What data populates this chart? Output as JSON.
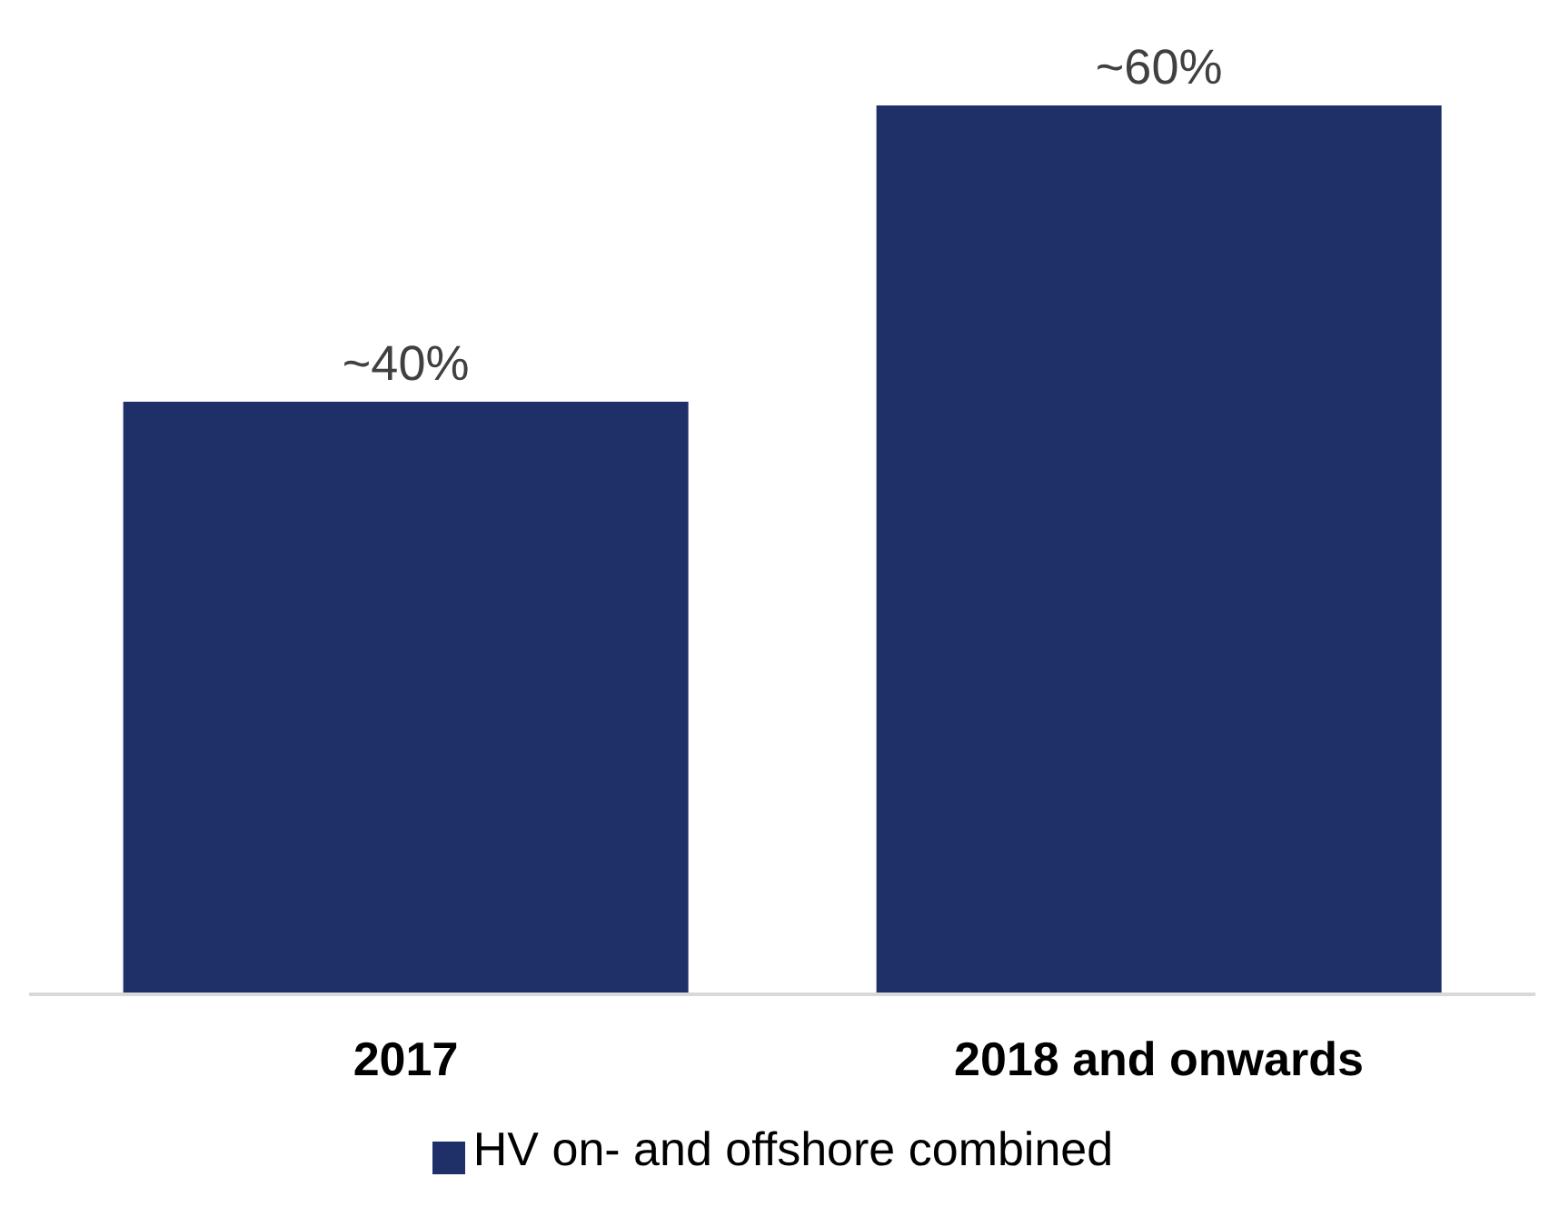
{
  "chart_data": {
    "type": "bar",
    "categories": [
      "2017",
      "2018 and onwards"
    ],
    "series": [
      {
        "name": "HV on- and offshore combined",
        "color": "#1f3068",
        "values": [
          40,
          60
        ],
        "value_labels": [
          "~40%",
          "~60%"
        ]
      }
    ],
    "legend": "bottom"
  }
}
